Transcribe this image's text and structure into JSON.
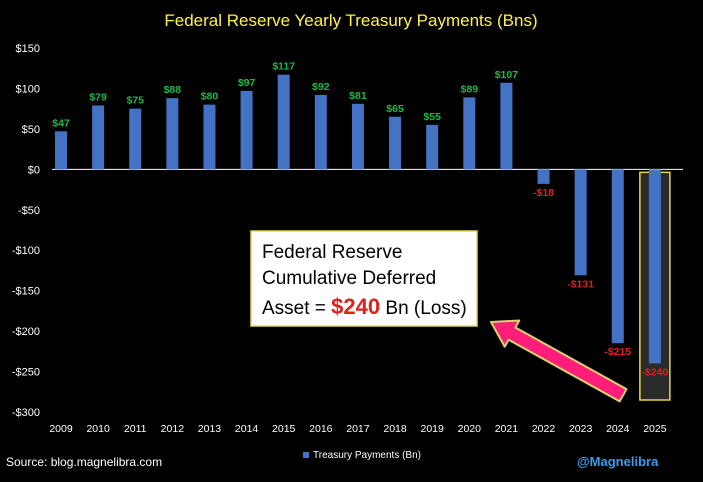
{
  "chart_data": {
    "type": "bar",
    "title": "Federal Reserve Yearly Treasury Payments (Bns)",
    "categories": [
      "2009",
      "2010",
      "2011",
      "2012",
      "2013",
      "2014",
      "2015",
      "2016",
      "2017",
      "2018",
      "2019",
      "2020",
      "2021",
      "2022",
      "2023",
      "2024",
      "2025"
    ],
    "series": [
      {
        "name": "Treasury Payments (Bn)",
        "values": [
          47,
          79,
          75,
          88,
          80,
          97,
          117,
          92,
          81,
          65,
          55,
          89,
          107,
          -18,
          -131,
          -215,
          -240
        ],
        "labels": [
          "$47",
          "$79",
          "$75",
          "$88",
          "$80",
          "$97",
          "$117",
          "$92",
          "$81",
          "$65",
          "$55",
          "$89",
          "$107",
          "-$18",
          "-$131",
          "-$215",
          "-$240"
        ]
      }
    ],
    "y_ticks": [
      150,
      100,
      50,
      0,
      -50,
      -100,
      -150,
      -200,
      -250,
      -300
    ],
    "y_tick_labels": [
      "$150",
      "$100",
      "$50",
      "$0",
      "-$50",
      "-$100",
      "-$150",
      "-$200",
      "-$250",
      "-$300"
    ],
    "ylim": [
      -300,
      150
    ],
    "grid": false,
    "legend_position": "bottom-center",
    "highlighted_category": "2025",
    "colors": {
      "background": "#000000",
      "bar": "#4472C4",
      "positive_label": "#1FB84A",
      "negative_label": "#E0201B",
      "title": "#FFF24A",
      "axis_text": "#FFFFFF",
      "highlight_box_fill": "#2A2A2A",
      "highlight_box_stroke": "#E6D84B",
      "arrow_fill": "#FF1D7C",
      "arrow_stroke": "#D9D36A",
      "watermark": "#3D9BEA"
    }
  },
  "annotation": {
    "line1": "Federal Reserve",
    "line2": "Cumulative Deferred",
    "line3_prefix": "Asset = ",
    "line3_value": "$240",
    "line3_suffix": " Bn (Loss)",
    "value_color": "#E0201B"
  },
  "footer": {
    "source": "Source: blog.magnelibra.com",
    "legend_label": "Treasury Payments (Bn)",
    "watermark": "@Magnelibra"
  }
}
